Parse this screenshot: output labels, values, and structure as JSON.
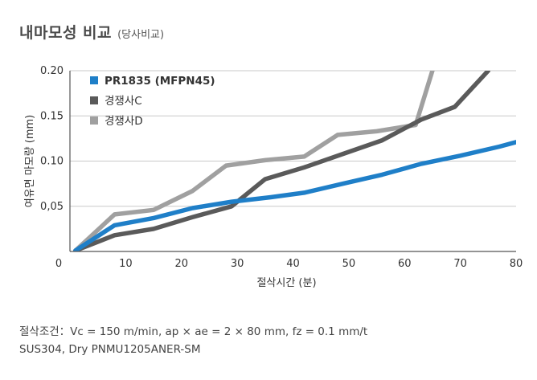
{
  "header": {
    "title": "내마모성 비교",
    "subtitle": "(당사비교)"
  },
  "conditions": {
    "line1": "절삭조건：Vc = 150 m/min, ap × ae = 2 × 80 mm, fz = 0.1 mm/t",
    "line2": "SUS304, Dry  PNMU1205ANER-SM"
  },
  "chart_data": {
    "type": "line",
    "title": "",
    "xlabel": "절삭시간 (분)",
    "ylabel": "여유면 마모량 (mm)",
    "xlim": [
      0,
      80
    ],
    "ylim": [
      0,
      0.2
    ],
    "x_ticks": [
      "0",
      "10",
      "20",
      "30",
      "40",
      "50",
      "60",
      "70",
      "80"
    ],
    "y_ticks": [
      "0,05",
      "0.10",
      "0.15",
      "0.20"
    ],
    "grid": "horizontal",
    "legend_position": "top-left",
    "series": [
      {
        "name": "PR1835 (MFPN45)",
        "color": "#1f7fc8",
        "bold": true,
        "points": [
          [
            1,
            0.001
          ],
          [
            8,
            0.029
          ],
          [
            15,
            0.037
          ],
          [
            22,
            0.048
          ],
          [
            29,
            0.055
          ],
          [
            36,
            0.06
          ],
          [
            42,
            0.065
          ],
          [
            49,
            0.075
          ],
          [
            56,
            0.085
          ],
          [
            63,
            0.097
          ],
          [
            70,
            0.106
          ],
          [
            77,
            0.116
          ],
          [
            80,
            0.121
          ]
        ]
      },
      {
        "name": "경쟁사C",
        "color": "#5a5a5a",
        "bold": false,
        "points": [
          [
            1,
            0.001
          ],
          [
            8,
            0.018
          ],
          [
            15,
            0.025
          ],
          [
            22,
            0.038
          ],
          [
            29,
            0.05
          ],
          [
            35,
            0.08
          ],
          [
            42,
            0.093
          ],
          [
            49,
            0.108
          ],
          [
            56,
            0.123
          ],
          [
            63,
            0.146
          ],
          [
            69,
            0.16
          ],
          [
            75,
            0.2
          ]
        ]
      },
      {
        "name": "경쟁사D",
        "color": "#a0a0a0",
        "bold": false,
        "points": [
          [
            1,
            0.001
          ],
          [
            8,
            0.041
          ],
          [
            15,
            0.046
          ],
          [
            22,
            0.067
          ],
          [
            28,
            0.095
          ],
          [
            35,
            0.101
          ],
          [
            42,
            0.105
          ],
          [
            48,
            0.129
          ],
          [
            55,
            0.133
          ],
          [
            62,
            0.14
          ],
          [
            65,
            0.2
          ]
        ]
      }
    ]
  }
}
